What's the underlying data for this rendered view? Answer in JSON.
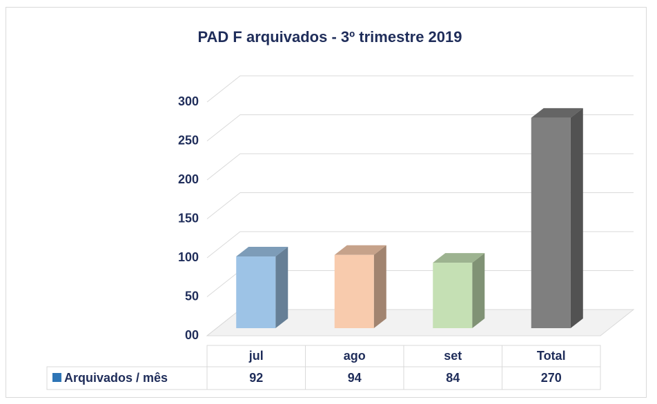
{
  "chart_data": {
    "type": "bar3d",
    "title": "PAD F arquivados  - 3º trimestre 2019",
    "categories": [
      "jul",
      "ago",
      "set",
      "Total"
    ],
    "series": [
      {
        "name": "Arquivados / mês",
        "color": "#2e75b6",
        "values": [
          92,
          94,
          84,
          270
        ]
      }
    ],
    "colors": [
      "#9dc3e6",
      "#f8cbad",
      "#c5e0b4",
      "#7f7f7f"
    ],
    "ylim": [
      0,
      300
    ],
    "yticks": [
      {
        "value": 0,
        "label": "00"
      },
      50,
      100,
      150,
      200,
      250,
      300
    ],
    "grid": true
  }
}
